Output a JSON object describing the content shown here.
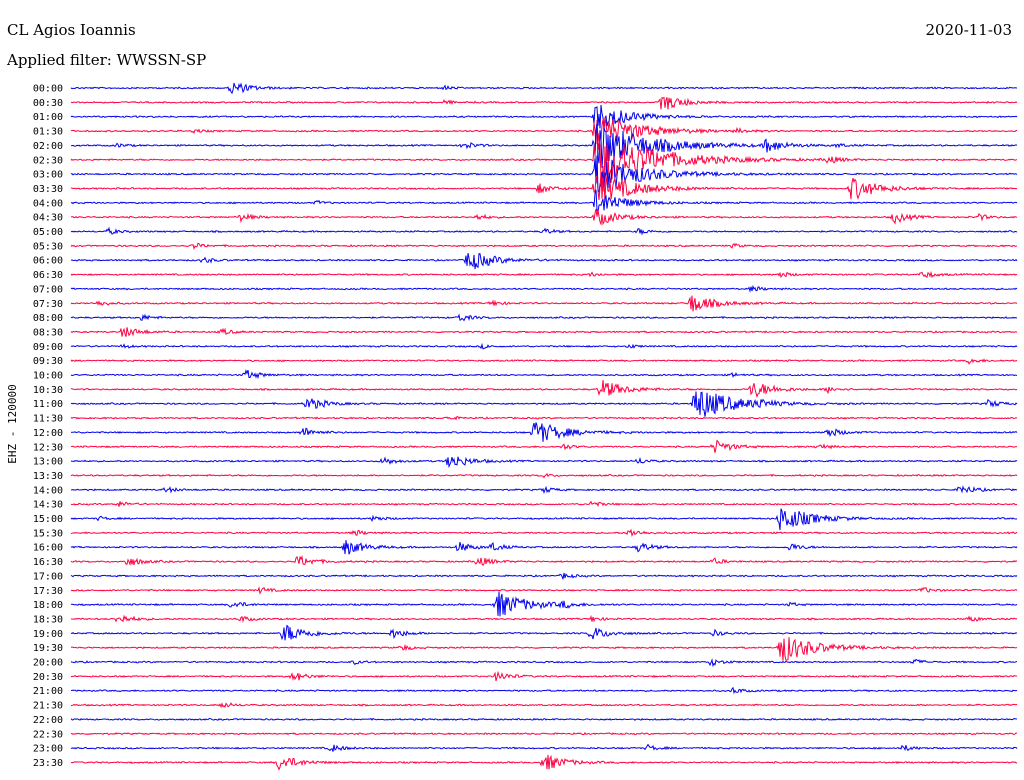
{
  "header": {
    "station": "CL Agios Ioannis",
    "date": "2020-11-03",
    "filter": "Applied filter: WWSSN-SP"
  },
  "chart_data": {
    "type": "helicorder",
    "ylabel": "EHZ - 120000",
    "trace_colors": [
      "#0000ee",
      "#ff0040"
    ],
    "rows": [
      {
        "time": "00:00",
        "events": [
          {
            "t": 0.17,
            "amp": 7
          },
          {
            "t": 0.395,
            "amp": 2
          }
        ]
      },
      {
        "time": "00:30",
        "events": [
          {
            "t": 0.395,
            "amp": 2
          },
          {
            "t": 0.625,
            "amp": 9
          }
        ]
      },
      {
        "time": "01:00",
        "events": [
          {
            "t": 0.555,
            "amp": 15
          }
        ]
      },
      {
        "time": "01:30",
        "events": [
          {
            "t": 0.13,
            "amp": 2
          },
          {
            "t": 0.555,
            "amp": 20
          },
          {
            "t": 0.705,
            "amp": 2
          }
        ]
      },
      {
        "time": "02:00",
        "events": [
          {
            "t": 0.05,
            "amp": 2
          },
          {
            "t": 0.415,
            "amp": 4
          },
          {
            "t": 0.555,
            "amp": 26
          },
          {
            "t": 0.735,
            "amp": 7
          },
          {
            "t": 0.81,
            "amp": 2
          }
        ]
      },
      {
        "time": "02:30",
        "events": [
          {
            "t": 0.555,
            "amp": 30
          },
          {
            "t": 0.8,
            "amp": 4
          }
        ]
      },
      {
        "time": "03:00",
        "events": [
          {
            "t": 0.555,
            "amp": 22
          }
        ]
      },
      {
        "time": "03:30",
        "events": [
          {
            "t": 0.495,
            "amp": 5
          },
          {
            "t": 0.555,
            "amp": 18
          },
          {
            "t": 0.825,
            "amp": 12
          }
        ]
      },
      {
        "time": "04:00",
        "events": [
          {
            "t": 0.26,
            "amp": 2
          },
          {
            "t": 0.555,
            "amp": 13
          }
        ]
      },
      {
        "time": "04:30",
        "events": [
          {
            "t": 0.18,
            "amp": 4
          },
          {
            "t": 0.43,
            "amp": 3
          },
          {
            "t": 0.555,
            "amp": 9
          },
          {
            "t": 0.87,
            "amp": 6
          },
          {
            "t": 0.96,
            "amp": 3
          }
        ]
      },
      {
        "time": "05:00",
        "events": [
          {
            "t": 0.04,
            "amp": 3
          },
          {
            "t": 0.5,
            "amp": 3
          },
          {
            "t": 0.6,
            "amp": 3
          }
        ]
      },
      {
        "time": "05:30",
        "events": [
          {
            "t": 0.13,
            "amp": 3
          },
          {
            "t": 0.7,
            "amp": 2
          }
        ]
      },
      {
        "time": "06:00",
        "events": [
          {
            "t": 0.14,
            "amp": 3
          },
          {
            "t": 0.42,
            "amp": 11
          }
        ]
      },
      {
        "time": "06:30",
        "events": [
          {
            "t": 0.55,
            "amp": 2
          },
          {
            "t": 0.75,
            "amp": 3
          },
          {
            "t": 0.9,
            "amp": 4
          }
        ]
      },
      {
        "time": "07:00",
        "events": [
          {
            "t": 0.72,
            "amp": 3
          }
        ]
      },
      {
        "time": "07:30",
        "events": [
          {
            "t": 0.03,
            "amp": 3
          },
          {
            "t": 0.445,
            "amp": 3
          },
          {
            "t": 0.655,
            "amp": 10
          }
        ]
      },
      {
        "time": "08:00",
        "events": [
          {
            "t": 0.075,
            "amp": 3
          },
          {
            "t": 0.41,
            "amp": 4
          }
        ]
      },
      {
        "time": "08:30",
        "events": [
          {
            "t": 0.055,
            "amp": 6
          },
          {
            "t": 0.16,
            "amp": 3
          }
        ]
      },
      {
        "time": "09:00",
        "events": [
          {
            "t": 0.055,
            "amp": 2
          },
          {
            "t": 0.435,
            "amp": 2
          },
          {
            "t": 0.59,
            "amp": 2
          }
        ]
      },
      {
        "time": "09:30",
        "events": [
          {
            "t": 0.95,
            "amp": 3
          }
        ]
      },
      {
        "time": "10:00",
        "events": [
          {
            "t": 0.185,
            "amp": 5
          },
          {
            "t": 0.7,
            "amp": 2
          }
        ]
      },
      {
        "time": "10:30",
        "events": [
          {
            "t": 0.56,
            "amp": 10
          },
          {
            "t": 0.72,
            "amp": 9
          },
          {
            "t": 0.8,
            "amp": 3
          }
        ]
      },
      {
        "time": "11:00",
        "events": [
          {
            "t": 0.25,
            "amp": 7
          },
          {
            "t": 0.66,
            "amp": 18
          },
          {
            "t": 0.725,
            "amp": 3
          },
          {
            "t": 0.97,
            "amp": 4
          }
        ]
      },
      {
        "time": "11:30",
        "events": [
          {
            "t": 0.4,
            "amp": 2
          }
        ]
      },
      {
        "time": "12:00",
        "events": [
          {
            "t": 0.245,
            "amp": 5
          },
          {
            "t": 0.49,
            "amp": 13
          },
          {
            "t": 0.8,
            "amp": 5
          }
        ]
      },
      {
        "time": "12:30",
        "events": [
          {
            "t": 0.52,
            "amp": 3
          },
          {
            "t": 0.68,
            "amp": 7
          },
          {
            "t": 0.79,
            "amp": 3
          }
        ]
      },
      {
        "time": "13:00",
        "events": [
          {
            "t": 0.33,
            "amp": 4
          },
          {
            "t": 0.4,
            "amp": 8
          },
          {
            "t": 0.6,
            "amp": 3
          }
        ]
      },
      {
        "time": "13:30",
        "events": [
          {
            "t": 0.5,
            "amp": 2
          }
        ]
      },
      {
        "time": "14:00",
        "events": [
          {
            "t": 0.1,
            "amp": 3
          },
          {
            "t": 0.5,
            "amp": 3
          },
          {
            "t": 0.94,
            "amp": 5
          }
        ]
      },
      {
        "time": "14:30",
        "events": [
          {
            "t": 0.05,
            "amp": 3
          },
          {
            "t": 0.55,
            "amp": 3
          }
        ]
      },
      {
        "time": "15:00",
        "events": [
          {
            "t": 0.03,
            "amp": 2
          },
          {
            "t": 0.32,
            "amp": 3
          },
          {
            "t": 0.75,
            "amp": 14
          }
        ]
      },
      {
        "time": "15:30",
        "events": [
          {
            "t": 0.3,
            "amp": 3
          },
          {
            "t": 0.59,
            "amp": 4
          }
        ]
      },
      {
        "time": "16:00",
        "events": [
          {
            "t": 0.29,
            "amp": 8
          },
          {
            "t": 0.41,
            "amp": 5
          },
          {
            "t": 0.445,
            "amp": 4
          },
          {
            "t": 0.6,
            "amp": 5
          },
          {
            "t": 0.76,
            "amp": 4
          }
        ]
      },
      {
        "time": "16:30",
        "events": [
          {
            "t": 0.06,
            "amp": 5
          },
          {
            "t": 0.24,
            "amp": 6
          },
          {
            "t": 0.43,
            "amp": 5
          },
          {
            "t": 0.68,
            "amp": 3
          }
        ]
      },
      {
        "time": "17:00",
        "events": [
          {
            "t": 0.52,
            "amp": 3
          }
        ]
      },
      {
        "time": "17:30",
        "events": [
          {
            "t": 0.2,
            "amp": 3
          },
          {
            "t": 0.9,
            "amp": 3
          }
        ]
      },
      {
        "time": "18:00",
        "events": [
          {
            "t": 0.17,
            "amp": 4
          },
          {
            "t": 0.45,
            "amp": 14
          },
          {
            "t": 0.52,
            "amp": 3
          },
          {
            "t": 0.76,
            "amp": 2
          }
        ]
      },
      {
        "time": "18:30",
        "events": [
          {
            "t": 0.05,
            "amp": 5
          },
          {
            "t": 0.18,
            "amp": 3
          },
          {
            "t": 0.55,
            "amp": 3
          },
          {
            "t": 0.95,
            "amp": 3
          }
        ]
      },
      {
        "time": "19:00",
        "events": [
          {
            "t": 0.225,
            "amp": 10
          },
          {
            "t": 0.34,
            "amp": 5
          },
          {
            "t": 0.55,
            "amp": 7
          },
          {
            "t": 0.68,
            "amp": 3
          }
        ]
      },
      {
        "time": "19:30",
        "events": [
          {
            "t": 0.35,
            "amp": 3
          },
          {
            "t": 0.75,
            "amp": 16
          }
        ]
      },
      {
        "time": "20:00",
        "events": [
          {
            "t": 0.3,
            "amp": 2
          },
          {
            "t": 0.675,
            "amp": 4
          },
          {
            "t": 0.89,
            "amp": 3
          }
        ]
      },
      {
        "time": "20:30",
        "events": [
          {
            "t": 0.235,
            "amp": 5
          },
          {
            "t": 0.45,
            "amp": 5
          }
        ]
      },
      {
        "time": "21:00",
        "events": [
          {
            "t": 0.7,
            "amp": 3
          }
        ]
      },
      {
        "time": "21:30",
        "events": [
          {
            "t": 0.16,
            "amp": 3
          }
        ]
      },
      {
        "time": "22:00",
        "events": []
      },
      {
        "time": "22:30",
        "events": []
      },
      {
        "time": "23:00",
        "events": [
          {
            "t": 0.275,
            "amp": 4
          },
          {
            "t": 0.61,
            "amp": 3
          },
          {
            "t": 0.88,
            "amp": 3
          }
        ]
      },
      {
        "time": "23:30",
        "events": [
          {
            "t": 0.22,
            "amp": 8
          },
          {
            "t": 0.5,
            "amp": 9
          }
        ]
      }
    ]
  }
}
